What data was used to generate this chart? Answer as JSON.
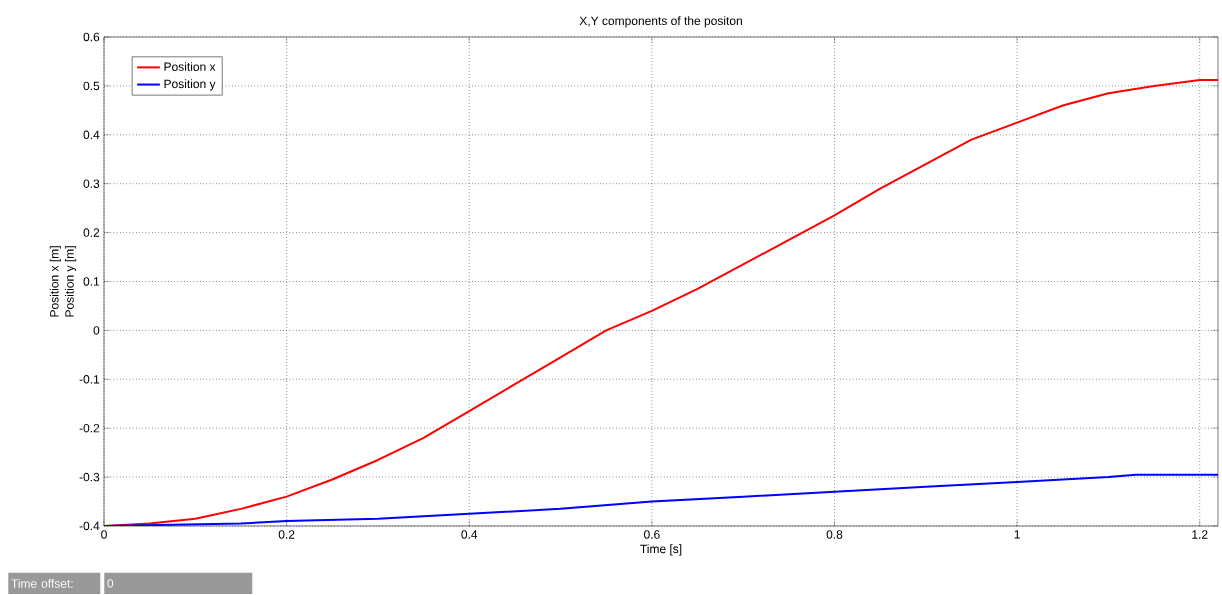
{
  "chart_data": {
    "type": "line",
    "title": "X,Y components of the positon",
    "xlabel": "Time [s]",
    "ylabel": [
      "Position x [m]",
      "Position y [m]"
    ],
    "annotations": [
      "Time offset:",
      "0"
    ],
    "xlim": [
      0,
      1.22
    ],
    "ylim": [
      -0.4,
      0.6
    ],
    "xticks": [
      0,
      0.2,
      0.4,
      0.6,
      0.8,
      1,
      1.2
    ],
    "yticks": [
      -0.4,
      -0.3,
      -0.2,
      -0.1,
      0,
      0.1,
      0.2,
      0.3,
      0.4,
      0.5,
      0.6
    ],
    "grid": true,
    "legend": "top left",
    "marker": "none",
    "line_style": "solid",
    "series": [
      {
        "name": "Position x",
        "color": "#ff0000",
        "x": [
          0,
          0.05,
          0.1,
          0.15,
          0.2,
          0.25,
          0.3,
          0.35,
          0.4,
          0.45,
          0.5,
          0.55,
          0.6,
          0.65,
          0.7,
          0.75,
          0.8,
          0.85,
          0.9,
          0.95,
          1.0,
          1.05,
          1.1,
          1.15,
          1.2,
          1.22
        ],
        "values": [
          -0.4,
          -0.395,
          -0.385,
          -0.365,
          -0.34,
          -0.305,
          -0.265,
          -0.22,
          -0.165,
          -0.11,
          -0.055,
          0,
          0.04,
          0.085,
          0.135,
          0.185,
          0.235,
          0.29,
          0.34,
          0.39,
          0.425,
          0.46,
          0.485,
          0.5,
          0.512,
          0.512
        ]
      },
      {
        "name": "Position y",
        "color": "#0000ff",
        "x": [
          0,
          0.15,
          0.2,
          0.3,
          0.4,
          0.5,
          0.6,
          0.7,
          0.8,
          0.9,
          1.0,
          1.1,
          1.13,
          1.22
        ],
        "values": [
          -0.4,
          -0.395,
          -0.39,
          -0.385,
          -0.375,
          -0.365,
          -0.35,
          -0.34,
          -0.33,
          -0.32,
          -0.31,
          -0.3,
          -0.295,
          -0.295
        ]
      }
    ]
  }
}
